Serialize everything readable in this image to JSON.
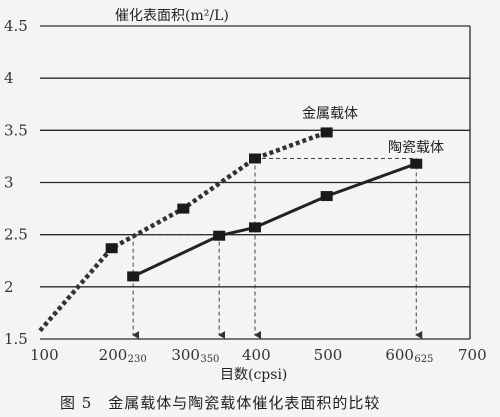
{
  "chart_data": {
    "type": "line",
    "ylabel": "催化表面积(m²/L)",
    "xlabel": "目数(cpsi)",
    "caption": "图 5　金属载体与陶瓷载体催化表面积的比较",
    "xlim": [
      100,
      700
    ],
    "ylim": [
      1.5,
      4.5
    ],
    "grid": "horizontal",
    "y_ticks": [
      "1.5",
      "2",
      "2.5",
      "3",
      "3.5",
      "4",
      "4.5"
    ],
    "x_ticks": [
      {
        "main": "100",
        "sub": ""
      },
      {
        "main": "200",
        "sub": "230"
      },
      {
        "main": "300",
        "sub": "350"
      },
      {
        "main": "400",
        "sub": ""
      },
      {
        "main": "500",
        "sub": ""
      },
      {
        "main": "600",
        "sub": "625"
      },
      {
        "main": "700",
        "sub": ""
      }
    ],
    "series": [
      {
        "name": "金属载体",
        "style": "dotted",
        "color": "#333333",
        "x": [
          100,
          200,
          300,
          400,
          500
        ],
        "y": [
          1.58,
          2.37,
          2.75,
          3.23,
          3.48
        ]
      },
      {
        "name": "陶瓷载体",
        "style": "solid",
        "color": "#222222",
        "x": [
          230,
          350,
          400,
          500,
          625
        ],
        "y": [
          2.1,
          2.49,
          2.57,
          2.87,
          3.18
        ]
      }
    ],
    "guides": [
      {
        "x": 230,
        "y": 2.5,
        "from": "金属载体"
      },
      {
        "x": 350,
        "y": 2.5,
        "from": "陶瓷载体"
      },
      {
        "x": 400,
        "y": 3.23,
        "from": "金属载体"
      },
      {
        "x": 625,
        "y": 3.23,
        "from": "陶瓷载体"
      }
    ]
  }
}
